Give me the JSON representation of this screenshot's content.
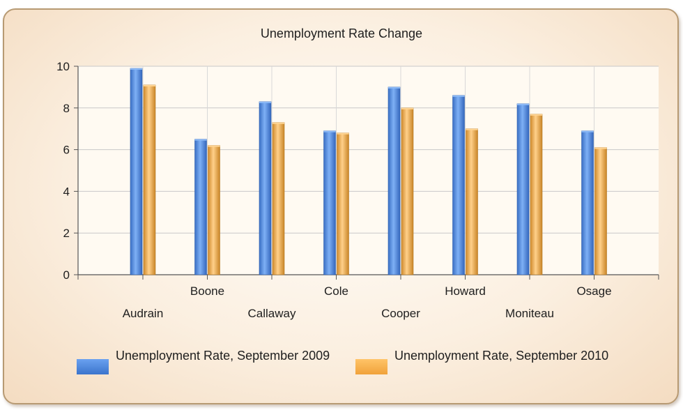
{
  "chart_data": {
    "type": "bar",
    "title": "Unemployment Rate Change",
    "categories": [
      "Audrain",
      "Boone",
      "Callaway",
      "Cole",
      "Cooper",
      "Howard",
      "Moniteau",
      "Osage"
    ],
    "series": [
      {
        "name": "Unemployment Rate, September 2009",
        "color": "#4a86e0",
        "values": [
          9.9,
          6.5,
          8.3,
          6.9,
          9.0,
          8.6,
          8.2,
          6.9
        ]
      },
      {
        "name": "Unemployment Rate, September 2010",
        "color": "#f3a843",
        "values": [
          9.1,
          6.2,
          7.3,
          6.8,
          8.0,
          7.0,
          7.7,
          6.1
        ]
      }
    ],
    "yticks": [
      0,
      2,
      4,
      6,
      8,
      10
    ],
    "ylim": [
      0,
      10
    ],
    "grid": true,
    "legend_position": "bottom"
  }
}
